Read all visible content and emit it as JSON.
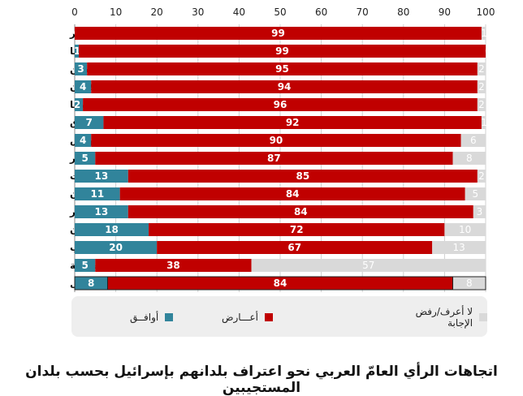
{
  "chart_data": {
    "type": "bar",
    "orientation": "horizontal",
    "stacked": true,
    "title": "اتجاهات الرأي العامّ العربي نحو اعتراف بلدانهم بإسرائيل بحسب بلدان المستجيبين",
    "xlim": [
      0,
      100
    ],
    "x_ticks": [
      0,
      10,
      20,
      30,
      40,
      50,
      60,
      70,
      80,
      90,
      100
    ],
    "grid": true,
    "legend_position": "bottom",
    "categories": [
      "الجزائر",
      "موريتانيا",
      "فلسطين",
      "الأردن",
      "ليبيا",
      "العراق",
      "تونس",
      "قطر",
      "الكويت",
      "لبنان",
      "مصر",
      "السودان",
      "المغرب",
      "السعودية",
      "المعدل"
    ],
    "series": [
      {
        "name": "أوافــق",
        "color": "#31849b",
        "label_color": "#ffffff",
        "values": [
          0,
          1,
          3,
          4,
          2,
          7,
          4,
          5,
          13,
          11,
          13,
          18,
          20,
          5,
          8
        ]
      },
      {
        "name": "أعـــارض",
        "color": "#c00000",
        "label_color": "#ffffff",
        "values": [
          99,
          99,
          95,
          94,
          96,
          92,
          90,
          87,
          85,
          84,
          84,
          72,
          67,
          38,
          84
        ]
      },
      {
        "name": "لا أعرف/رفض الإجابة",
        "color": "#d9d9d9",
        "label_color": "#ffffff",
        "values": [
          1,
          0,
          2,
          2,
          2,
          1,
          6,
          8,
          2,
          5,
          3,
          10,
          13,
          57,
          8
        ]
      }
    ],
    "highlighted_category": "المعدل"
  }
}
